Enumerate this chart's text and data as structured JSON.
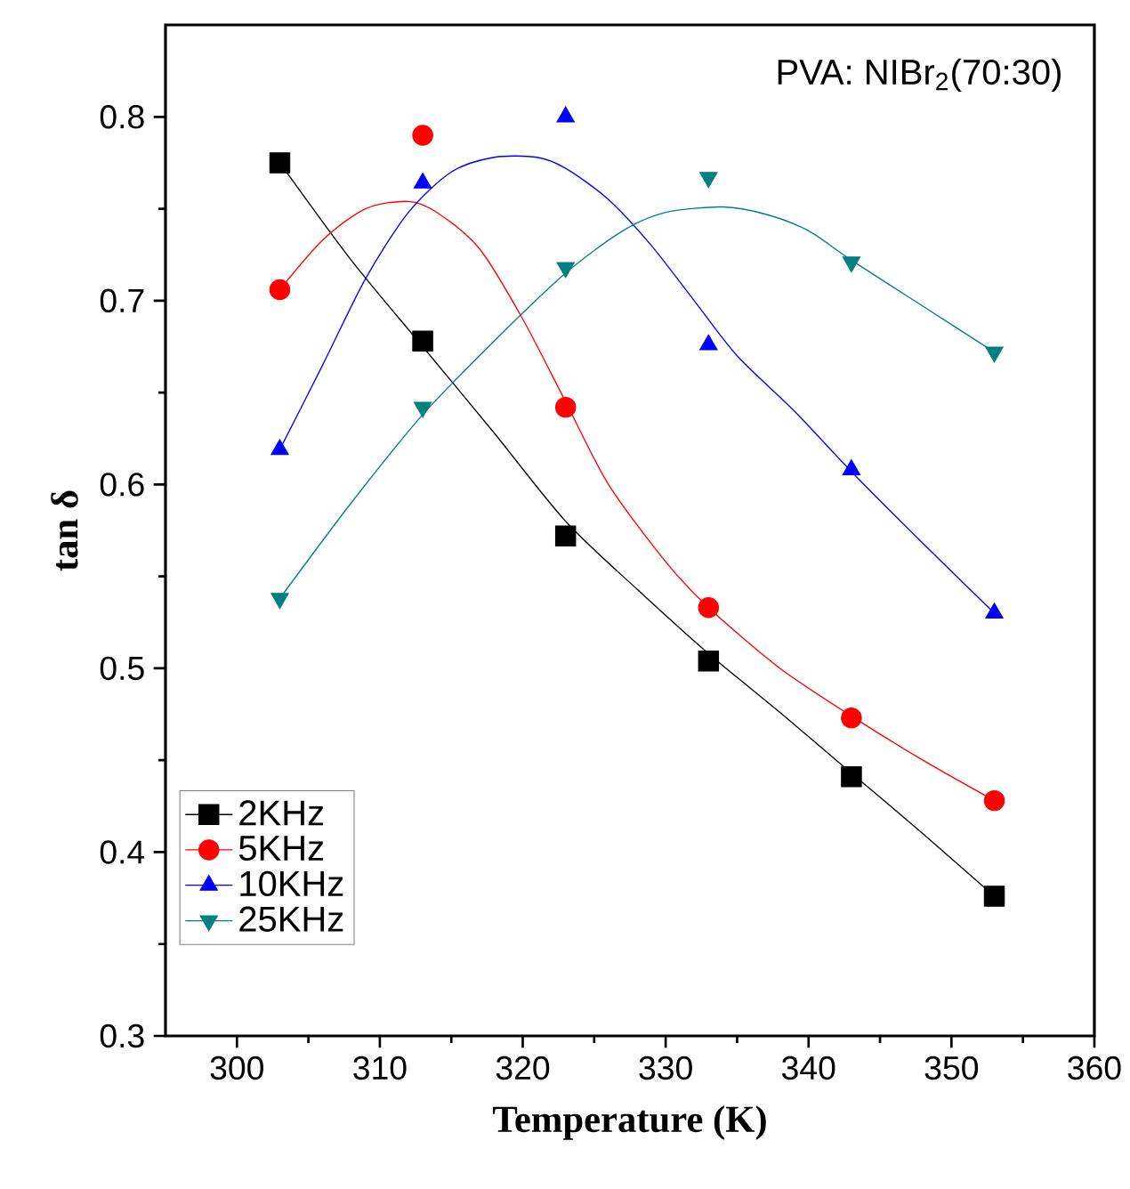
{
  "chart_data": {
    "type": "scatter",
    "xlabel": "Temperature (K)",
    "ylabel": "tan δ",
    "annotations": [
      "PVA: NIBr$_{2}$(70:30)"
    ],
    "x": [
      303,
      313,
      323,
      333,
      343,
      353
    ],
    "xlim": [
      295,
      360
    ],
    "xticks": [
      300,
      310,
      320,
      330,
      340,
      350,
      360
    ],
    "ylim": [
      0.3,
      0.85
    ],
    "yticks": [
      0.3,
      0.4,
      0.5,
      0.6,
      0.7,
      0.8
    ],
    "legend": "bottom left",
    "series": [
      {
        "name": "2KHz",
        "marker": "square",
        "color": "#000000",
        "values": [
          0.775,
          0.678,
          0.572,
          0.504,
          0.441,
          0.376
        ]
      },
      {
        "name": "5KHz",
        "marker": "circle",
        "color": "#ff0000",
        "values": [
          0.706,
          0.79,
          0.642,
          0.533,
          0.473,
          0.428
        ]
      },
      {
        "name": "10KHz",
        "marker": "triangle",
        "color": "#0000ff",
        "values": [
          0.619,
          0.764,
          0.8,
          0.676,
          0.608,
          0.53
        ]
      },
      {
        "name": "25KHz",
        "marker": "triangle down",
        "color": "#008080",
        "values": [
          0.538,
          0.642,
          0.718,
          0.767,
          0.721,
          0.672
        ]
      },
      {
        "type": "line",
        "color": "#000000",
        "x": [
          303,
          308,
          313,
          318,
          323,
          328,
          333,
          338,
          343,
          348,
          353
        ],
        "values": [
          0.775,
          0.722,
          0.675,
          0.628,
          0.58,
          0.543,
          0.508,
          0.476,
          0.443,
          0.41,
          0.376
        ]
      },
      {
        "type": "line",
        "color": "#ff0000",
        "x": [
          303,
          306,
          309,
          312,
          314,
          317,
          320,
          323,
          326,
          330,
          333,
          338,
          343,
          348,
          353
        ],
        "values": [
          0.706,
          0.733,
          0.75,
          0.754,
          0.748,
          0.728,
          0.69,
          0.645,
          0.6,
          0.558,
          0.533,
          0.5,
          0.474,
          0.45,
          0.428
        ]
      },
      {
        "type": "line",
        "color": "#0000ff",
        "x": [
          303,
          306,
          309,
          312,
          315,
          318,
          321,
          323,
          326,
          329,
          332,
          335,
          339,
          343,
          348,
          353
        ],
        "values": [
          0.619,
          0.665,
          0.712,
          0.748,
          0.77,
          0.778,
          0.778,
          0.772,
          0.755,
          0.73,
          0.7,
          0.67,
          0.64,
          0.607,
          0.568,
          0.53
        ]
      },
      {
        "type": "line",
        "color": "#008080",
        "x": [
          303,
          308,
          313,
          318,
          323,
          327,
          330,
          334,
          337,
          340,
          343,
          348,
          353
        ],
        "values": [
          0.538,
          0.59,
          0.638,
          0.678,
          0.715,
          0.738,
          0.748,
          0.751,
          0.747,
          0.738,
          0.722,
          0.697,
          0.672
        ]
      }
    ]
  }
}
